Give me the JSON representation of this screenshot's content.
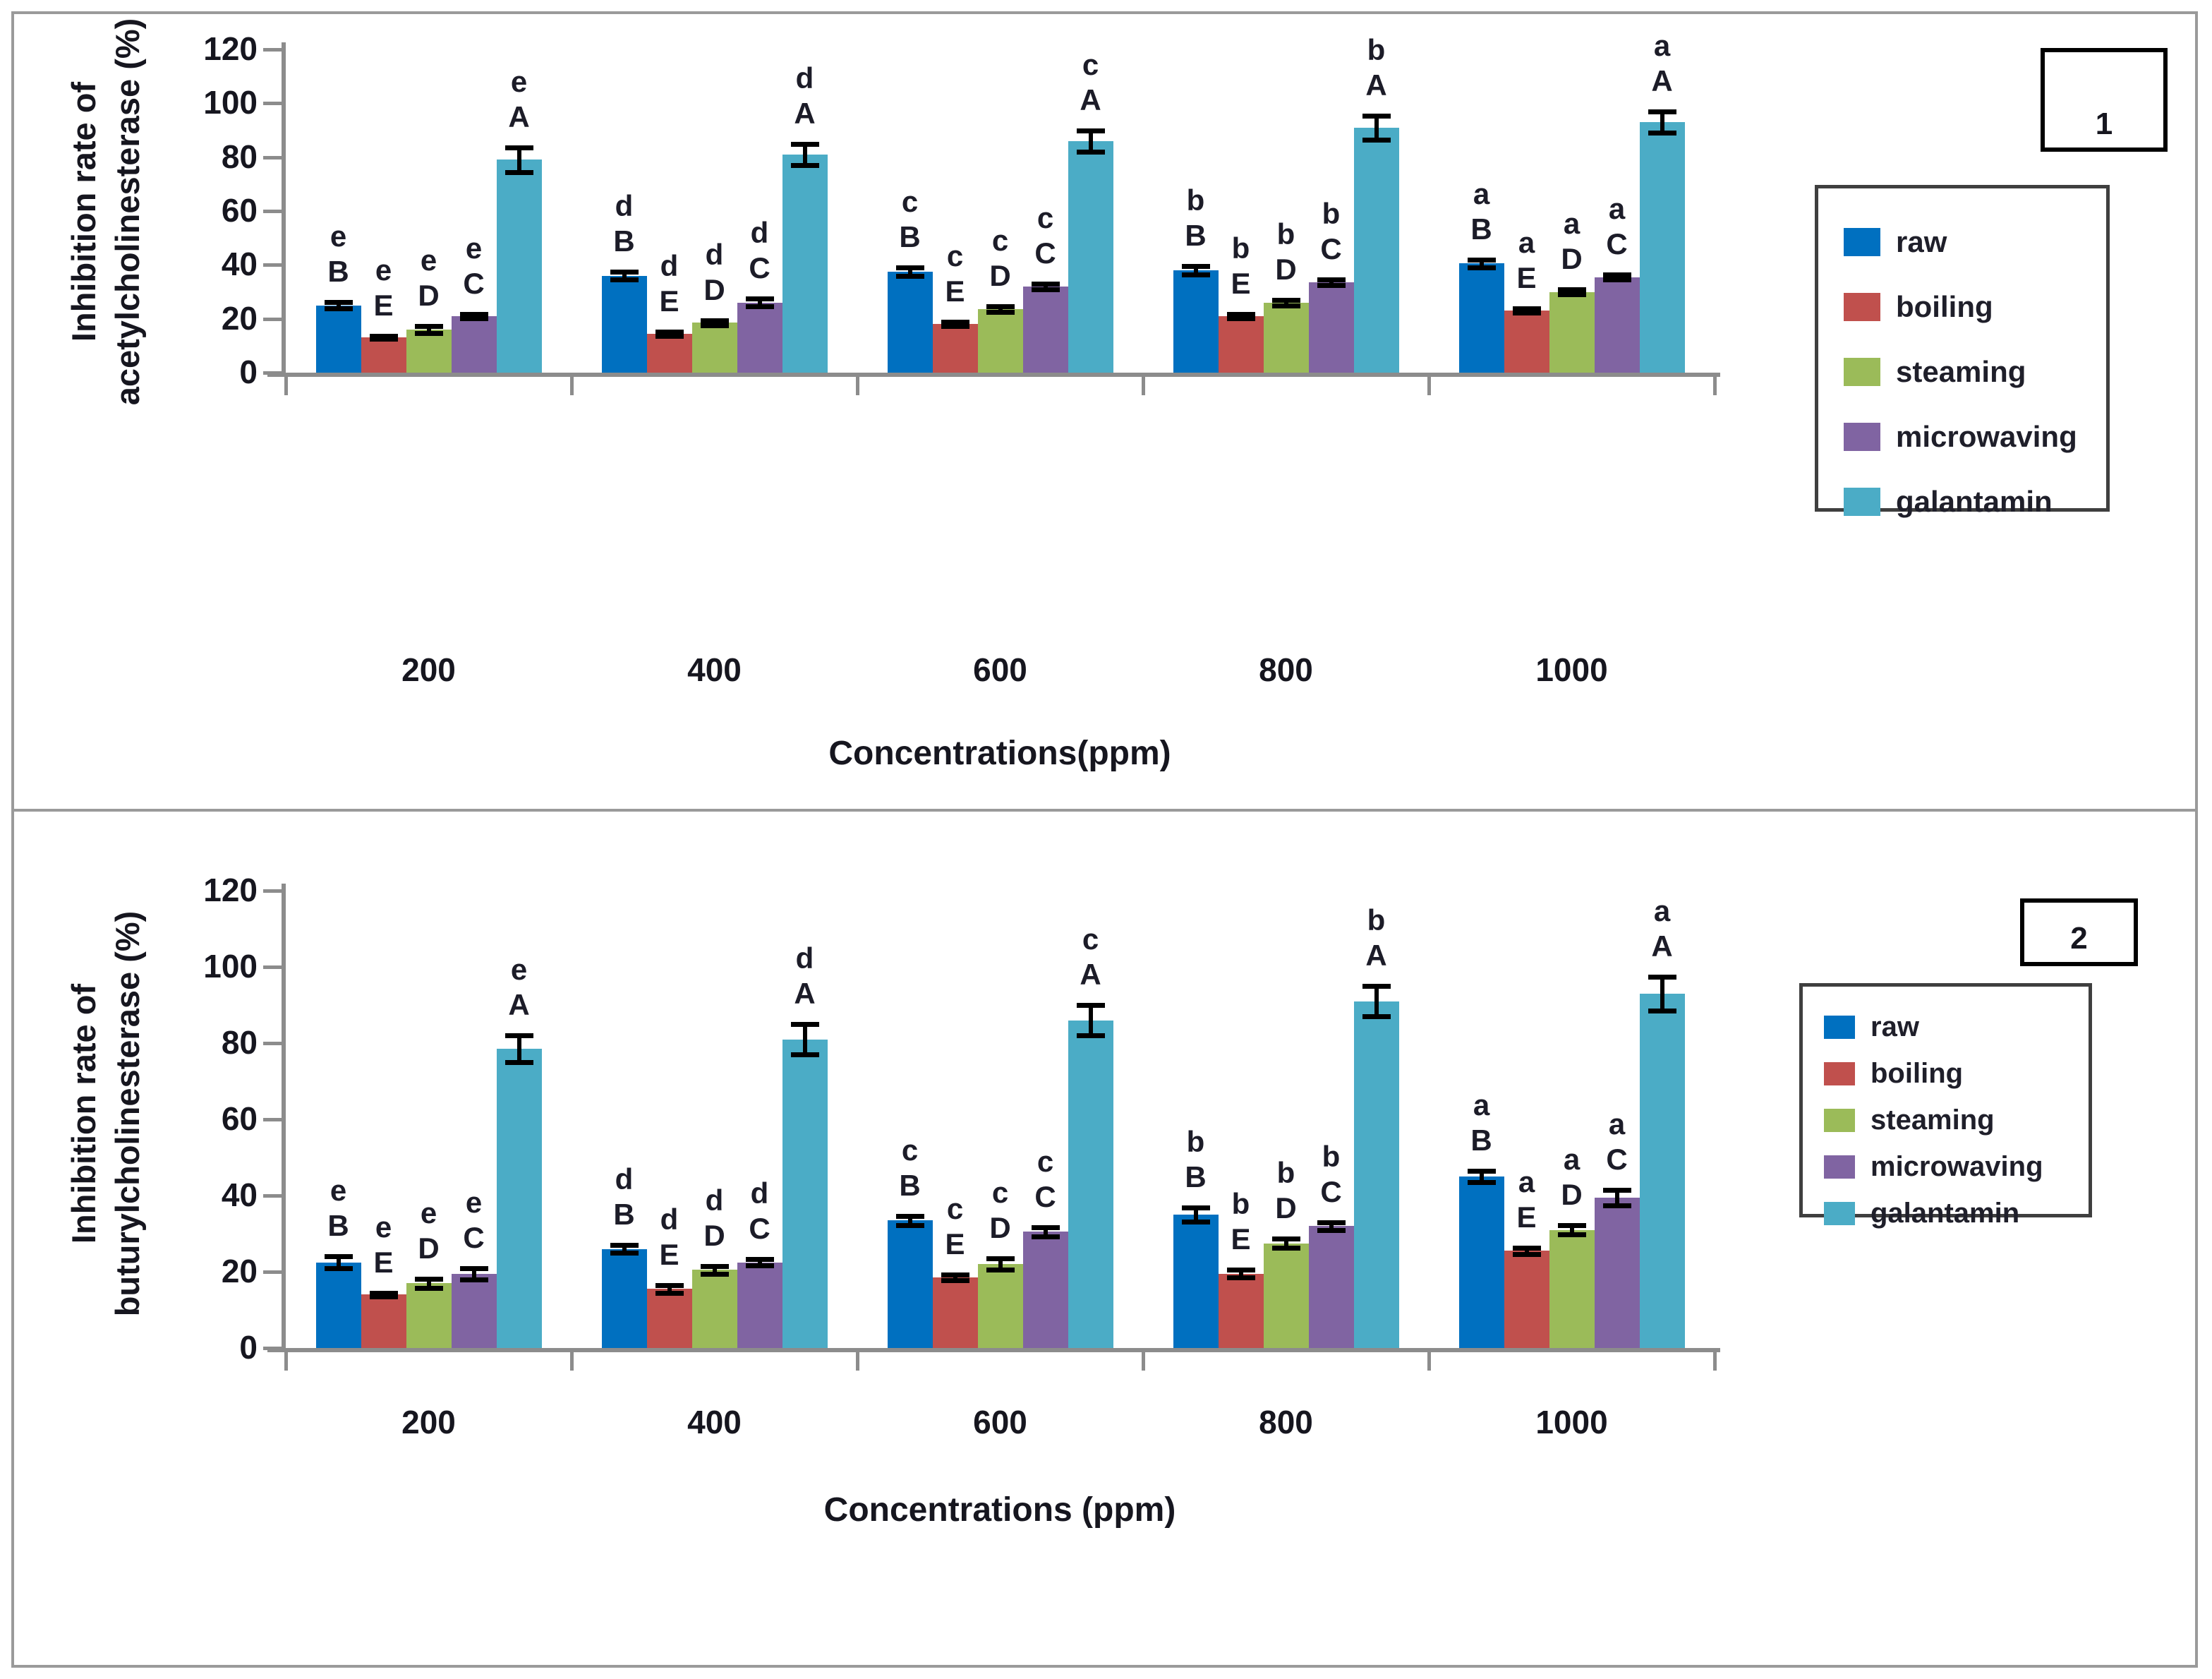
{
  "figure": {
    "panel_count": 2,
    "axis_color": "#8c8c8c",
    "frame_color": "#9a9a9a",
    "text_color": "#16161f"
  },
  "chart_data": [
    {
      "type": "bar",
      "panel_number": "1",
      "ylabel_line1": "Inhibition rate of",
      "ylabel_line2": "acetylcholinesterase (%)",
      "xlabel": "Concentrations(ppm)",
      "categories": [
        "200",
        "400",
        "600",
        "800",
        "1000"
      ],
      "ylim": [
        0,
        120
      ],
      "ytick_step": 20,
      "grid": false,
      "legend_position": "right",
      "group_letters": [
        "e",
        "d",
        "c",
        "b",
        "a"
      ],
      "series": [
        {
          "name": "raw",
          "letter": "B",
          "color": "#0070C0",
          "values": [
            25,
            36,
            37.5,
            38,
            40.5
          ],
          "errors": [
            1.2,
            1.5,
            1.5,
            1.5,
            1.5
          ]
        },
        {
          "name": "boiling",
          "letter": "E",
          "color": "#C0504D",
          "values": [
            13,
            14.5,
            18,
            21,
            23
          ],
          "errors": [
            0.5,
            0.8,
            0.8,
            0.8,
            0.8
          ]
        },
        {
          "name": "steaming",
          "letter": "D",
          "color": "#9BBB59",
          "values": [
            16,
            18.5,
            23.5,
            26,
            30
          ],
          "errors": [
            1.2,
            1.0,
            1.0,
            1.0,
            1.0
          ]
        },
        {
          "name": "microwaving",
          "letter": "C",
          "color": "#8064A2",
          "values": [
            21,
            26,
            32,
            33.5,
            35.5
          ],
          "errors": [
            0.8,
            1.5,
            1.0,
            1.0,
            1.0
          ]
        },
        {
          "name": "galantamin",
          "letter": "A",
          "color": "#4BACC6",
          "values": [
            79,
            81,
            86,
            91,
            93
          ],
          "errors": [
            4.5,
            4.0,
            4.0,
            4.5,
            4.0
          ]
        }
      ]
    },
    {
      "type": "bar",
      "panel_number": "2",
      "ylabel_line1": "Inhibition rate of",
      "ylabel_line2": "buturylcholinesterase (%)",
      "xlabel": "Concentrations (ppm)",
      "categories": [
        "200",
        "400",
        "600",
        "800",
        "1000"
      ],
      "ylim": [
        0,
        120
      ],
      "ytick_step": 20,
      "grid": false,
      "legend_position": "right",
      "group_letters": [
        "e",
        "d",
        "c",
        "b",
        "a"
      ],
      "series": [
        {
          "name": "raw",
          "letter": "B",
          "color": "#0070C0",
          "values": [
            22.5,
            26,
            33.5,
            35,
            45
          ],
          "errors": [
            1.5,
            1.0,
            1.2,
            1.8,
            1.5
          ]
        },
        {
          "name": "boiling",
          "letter": "E",
          "color": "#C0504D",
          "values": [
            14,
            15.5,
            18.5,
            19.5,
            25.5
          ],
          "errors": [
            0.4,
            1.0,
            0.8,
            1.0,
            0.8
          ]
        },
        {
          "name": "steaming",
          "letter": "D",
          "color": "#9BBB59",
          "values": [
            17,
            20.5,
            22,
            27.5,
            31
          ],
          "errors": [
            1.2,
            1.0,
            1.5,
            1.2,
            1.2
          ]
        },
        {
          "name": "microwaving",
          "letter": "C",
          "color": "#8064A2",
          "values": [
            19.5,
            22.5,
            30.5,
            32,
            39.5
          ],
          "errors": [
            1.5,
            0.8,
            1.2,
            1.0,
            2.0
          ]
        },
        {
          "name": "galantamin",
          "letter": "A",
          "color": "#4BACC6",
          "values": [
            78.5,
            81,
            86,
            91,
            93
          ],
          "errors": [
            3.5,
            4.0,
            4.0,
            4.0,
            4.5
          ]
        }
      ]
    }
  ]
}
